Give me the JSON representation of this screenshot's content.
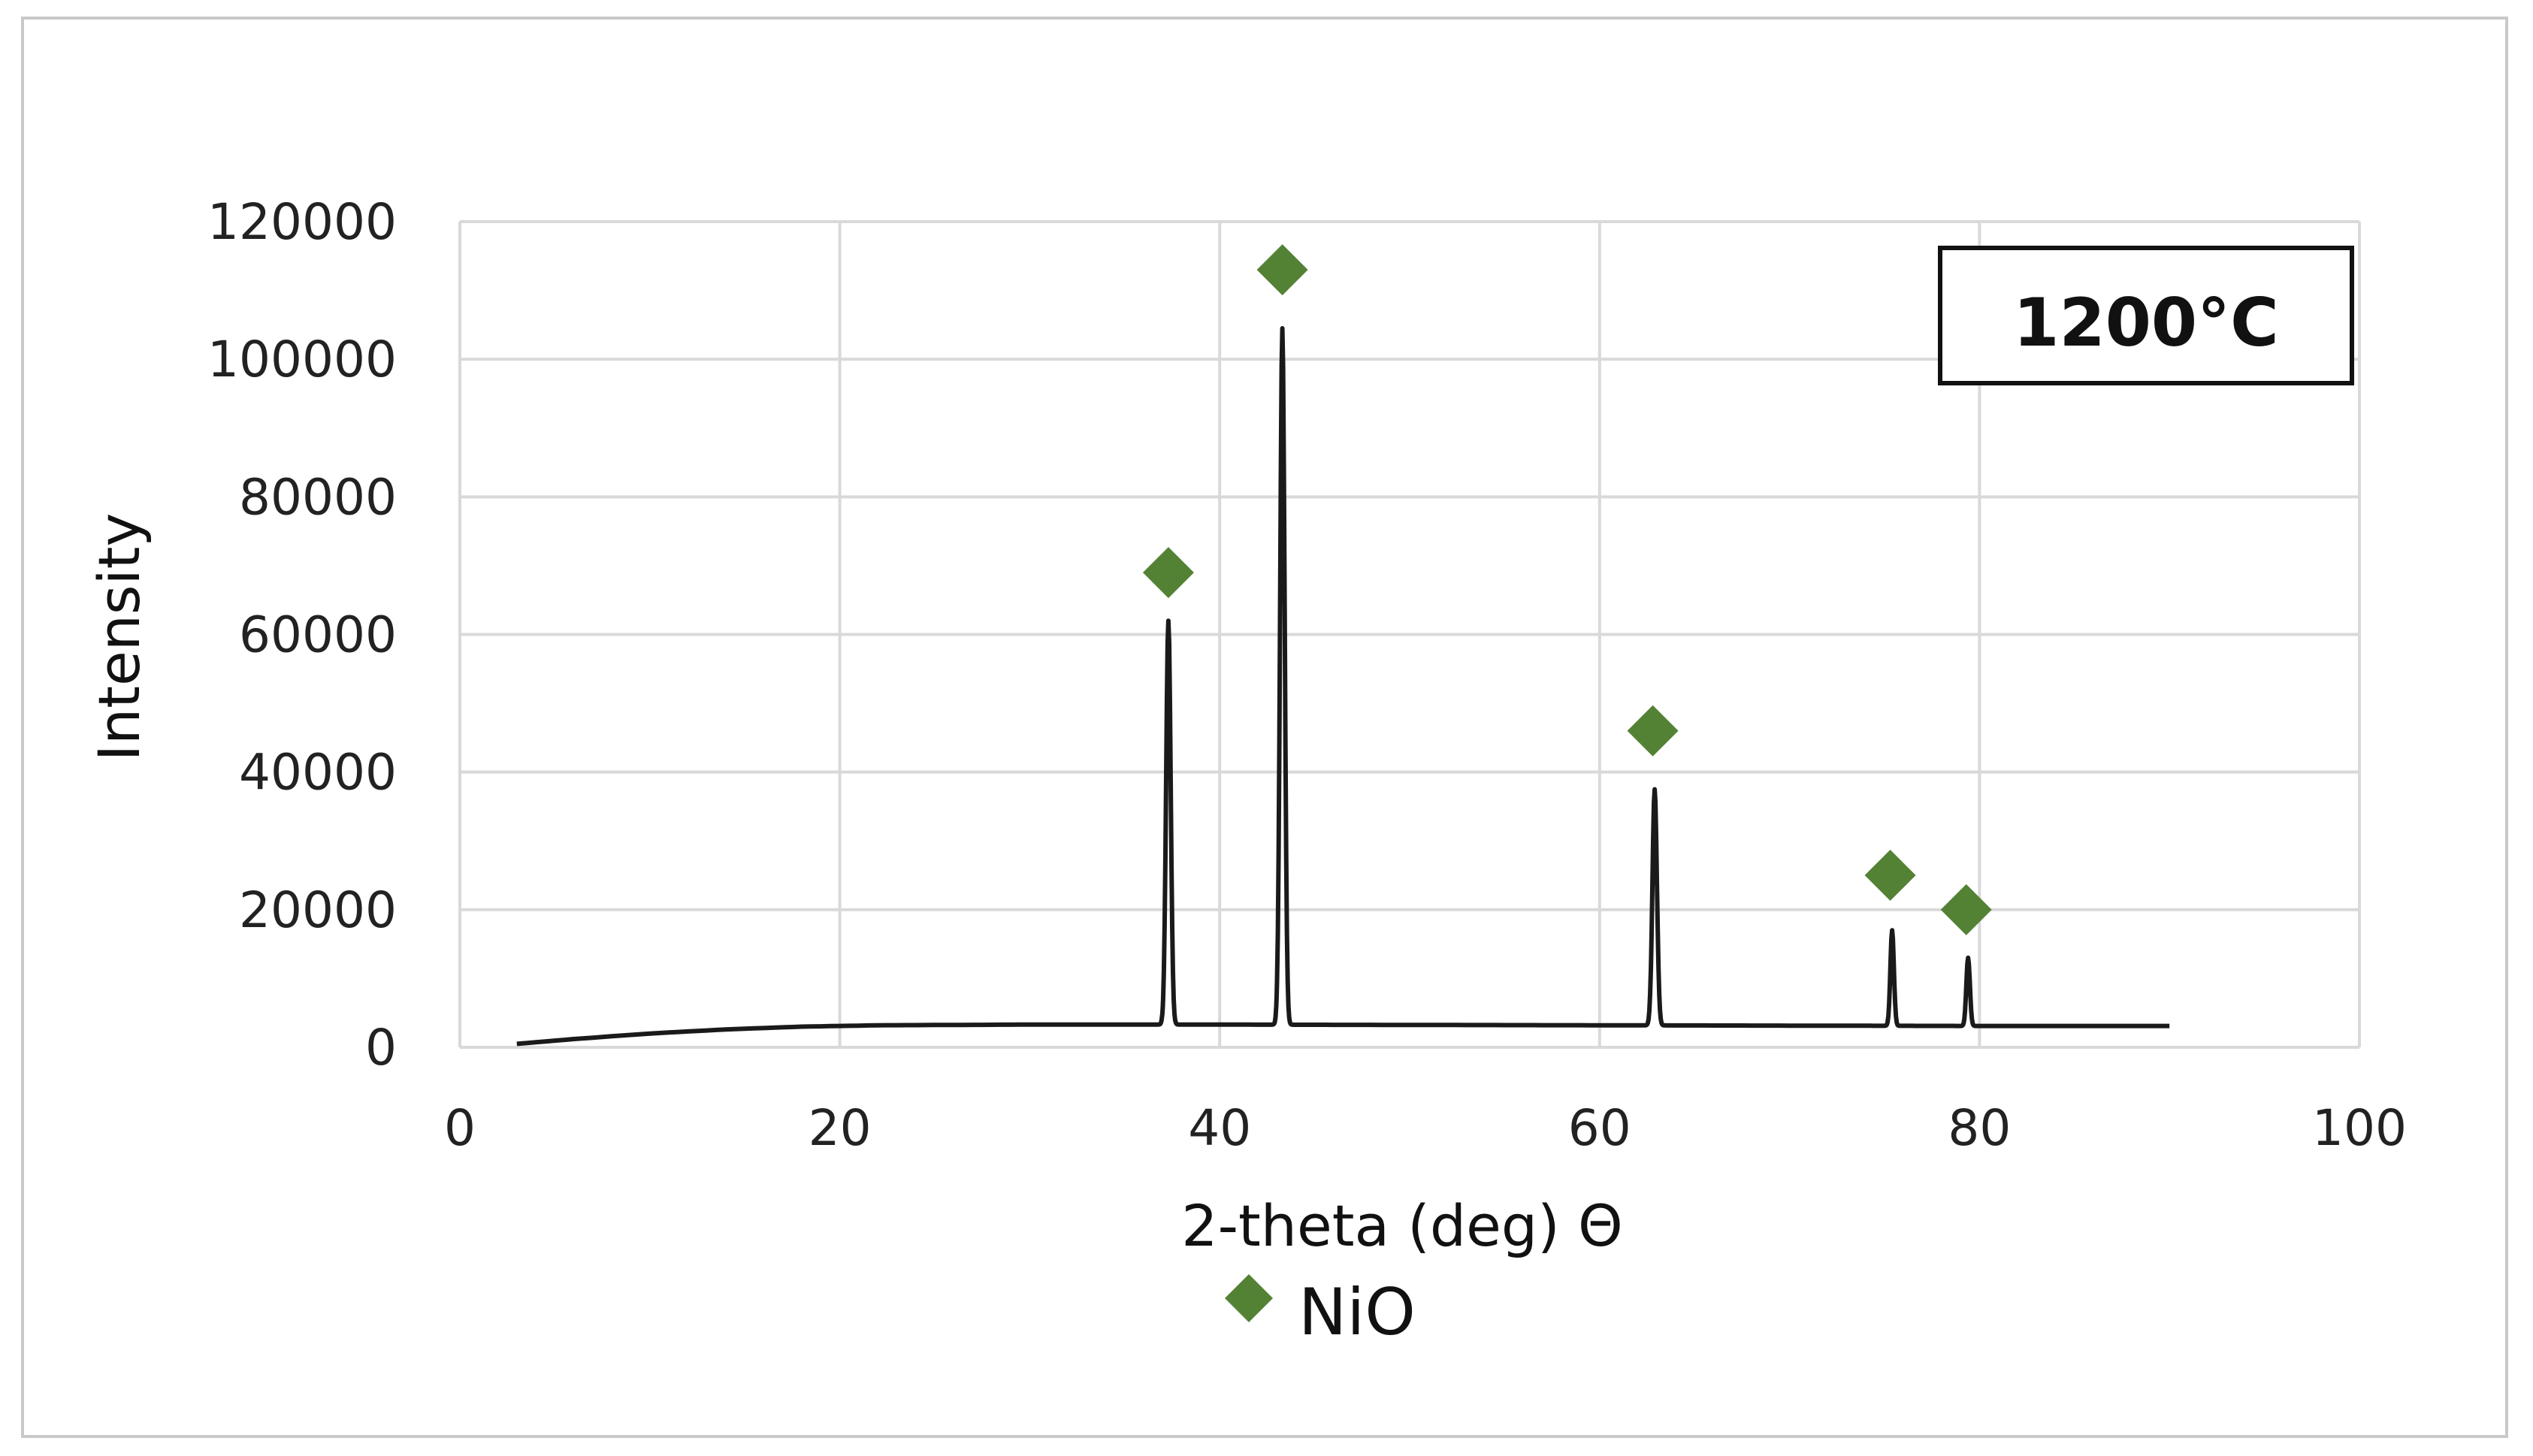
{
  "colors": {
    "series": "#1a1a1a",
    "marker": "#548235",
    "grid": "#d9d9d9"
  },
  "chart_data": {
    "type": "line",
    "title": "",
    "xlabel": "2-theta (deg) Θ",
    "ylabel": "Intensity",
    "xlim": [
      0,
      100
    ],
    "ylim": [
      0,
      120000
    ],
    "x_ticks": [
      "0",
      "20",
      "40",
      "60",
      "80",
      "100"
    ],
    "y_ticks": [
      "0",
      "20000",
      "40000",
      "60000",
      "80000",
      "100000",
      "120000"
    ],
    "grid": true,
    "legend_position": "bottom",
    "legend": [
      {
        "label": "NiO",
        "marker": "diamond"
      }
    ],
    "annotation": "1200°C",
    "annotation_position": "top-right",
    "baseline": [
      [
        3,
        500
      ],
      [
        6,
        1200
      ],
      [
        10,
        2000
      ],
      [
        14,
        2600
      ],
      [
        18,
        3000
      ],
      [
        22,
        3200
      ],
      [
        30,
        3300
      ],
      [
        40,
        3300
      ],
      [
        50,
        3250
      ],
      [
        60,
        3200
      ],
      [
        70,
        3150
      ],
      [
        80,
        3100
      ],
      [
        90,
        3100
      ]
    ],
    "peaks": [
      {
        "x": 37.3,
        "y": 62000,
        "width": 0.28
      },
      {
        "x": 43.3,
        "y": 104500,
        "width": 0.28
      },
      {
        "x": 62.9,
        "y": 37500,
        "width": 0.28
      },
      {
        "x": 75.4,
        "y": 17000,
        "width": 0.22
      },
      {
        "x": 79.4,
        "y": 13000,
        "width": 0.22
      }
    ],
    "series": [
      {
        "marker_label": "NiO",
        "marker_points": [
          {
            "x": 37.3,
            "y": 69000
          },
          {
            "x": 43.3,
            "y": 113000
          },
          {
            "x": 62.8,
            "y": 46000
          },
          {
            "x": 75.3,
            "y": 25000
          },
          {
            "x": 79.3,
            "y": 20000
          }
        ]
      }
    ]
  }
}
